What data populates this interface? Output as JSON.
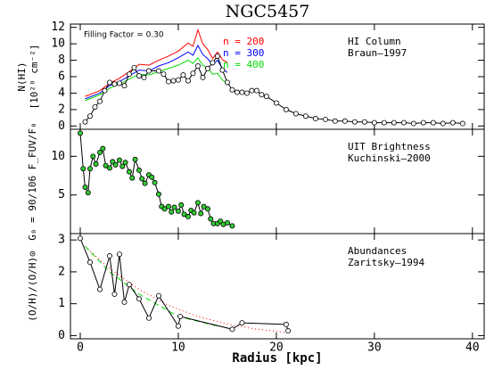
{
  "title": "NGC5457",
  "x_label": "Radius [kpc]",
  "chart_data": [
    {
      "type": "line",
      "y_label": [
        "N(HI)",
        "[10²⁰ cm⁻²]"
      ],
      "note": "Filling Factor = 0.30",
      "annotations": [
        "HI Column",
        "Braun–1997"
      ],
      "xlim": [
        -1,
        41.2
      ],
      "ylim": [
        -0.4,
        12.4
      ],
      "yticks": [
        0,
        2,
        4,
        6,
        8,
        10,
        12
      ],
      "series": [
        {
          "name": "n = 200",
          "color": "#ff0000",
          "x": [
            0.5,
            2,
            3,
            4,
            5,
            6,
            7,
            8,
            9,
            10,
            11,
            11.5,
            12,
            12.5,
            13,
            13.5,
            14,
            14.5,
            15
          ],
          "values": [
            3.6,
            4.3,
            5.2,
            5.8,
            6.6,
            7.5,
            7.4,
            8.0,
            8.5,
            9.1,
            10.1,
            9.7,
            11.7,
            10.0,
            9.3,
            8.2,
            9.0,
            8.1,
            7.7
          ]
        },
        {
          "name": "n = 300",
          "color": "#0000ff",
          "x": [
            0.5,
            2,
            3,
            4,
            5,
            6,
            7,
            8,
            9,
            10,
            11,
            11.5,
            12,
            12.5,
            13,
            13.5,
            14,
            14.5,
            15
          ],
          "values": [
            3.3,
            4.0,
            4.9,
            5.4,
            6.1,
            6.8,
            6.7,
            7.3,
            7.7,
            8.3,
            9.0,
            8.6,
            9.8,
            8.7,
            8.2,
            7.4,
            8.0,
            7.0,
            6.5
          ]
        },
        {
          "name": "n = 400",
          "color": "#00dd00",
          "x": [
            0.5,
            2,
            3,
            4,
            5,
            6,
            7,
            8,
            9,
            10,
            11,
            11.5,
            12,
            12.5,
            13,
            13.5,
            14,
            14.5,
            15
          ],
          "values": [
            3.1,
            3.8,
            4.6,
            5.1,
            5.7,
            6.3,
            6.2,
            6.6,
            7.0,
            7.4,
            8.0,
            7.6,
            8.3,
            7.4,
            7.0,
            6.3,
            6.4,
            5.6,
            5.2
          ]
        },
        {
          "color": "#000000",
          "marker_fill": "#ffffff",
          "x": [
            0.5,
            1,
            1.5,
            2,
            2.5,
            3,
            3.5,
            4,
            4.5,
            5,
            5.5,
            6,
            6.5,
            7,
            8,
            8.5,
            9,
            9.5,
            10,
            10.5,
            11,
            11.5,
            12,
            12.5,
            13,
            13.5,
            14,
            14.5,
            15,
            15.5,
            16,
            16.5,
            17,
            17.5,
            18,
            18.5,
            19,
            20,
            21,
            22,
            23,
            24,
            25,
            26,
            27,
            28,
            29,
            30,
            31,
            32,
            33,
            34,
            35,
            36,
            37,
            38,
            39
          ],
          "values": [
            0.5,
            1.2,
            2.3,
            3,
            4.3,
            5.3,
            5.1,
            5.2,
            4.9,
            6.3,
            7.1,
            6.1,
            5.9,
            6.7,
            6.7,
            6.3,
            5.4,
            5.5,
            5.6,
            6.2,
            5.5,
            6.4,
            7.3,
            5.9,
            7.0,
            7.7,
            8.5,
            6.8,
            5.3,
            4.4,
            4.1,
            4.1,
            4.0,
            4.3,
            4.3,
            3.8,
            3.6,
            2.8,
            2.0,
            1.5,
            1.2,
            0.9,
            0.8,
            0.6,
            0.6,
            0.5,
            0.5,
            0.4,
            0.4,
            0.4,
            0.4,
            0.3,
            0.4,
            0.4,
            0.3,
            0.4,
            0.3
          ]
        }
      ]
    },
    {
      "type": "line",
      "y_label": [
        "G₀ = 90/106 F_FUV/F₀"
      ],
      "annotations": [
        "UIT Brightness",
        "Kuchinski–2000"
      ],
      "xlim": [
        -1,
        41.2
      ],
      "ylim": [
        0,
        13.5
      ],
      "yticks": [
        5,
        10
      ],
      "series": [
        {
          "color": "#000000",
          "marker_fill": "#33cc33",
          "x": [
            0,
            0.3,
            0.5,
            0.8,
            1,
            1.3,
            1.6,
            2,
            2.3,
            2.6,
            3,
            3.3,
            3.6,
            4,
            4.3,
            4.6,
            5,
            5.3,
            5.6,
            6,
            6.3,
            6.6,
            7,
            7.3,
            7.6,
            8,
            8.3,
            8.6,
            9,
            9.3,
            9.6,
            10,
            10.3,
            10.6,
            11,
            11.3,
            11.6,
            12,
            12.3,
            12.6,
            13,
            13.3,
            13.6,
            14,
            14.3,
            14.6,
            15,
            15.5
          ],
          "values": [
            13,
            8.4,
            6,
            5.3,
            8.4,
            10,
            9,
            10.5,
            11,
            8.8,
            8.5,
            9.3,
            8.9,
            9.5,
            8.7,
            9.2,
            8,
            7.2,
            9.6,
            8.2,
            7.1,
            6.5,
            7.6,
            7.3,
            6.6,
            5.1,
            3.5,
            3.2,
            3.5,
            2.8,
            3.4,
            2.9,
            3.7,
            2.5,
            2.2,
            3,
            2.7,
            4,
            2.6,
            3.5,
            3.2,
            1.9,
            1.3,
            1.3,
            1.6,
            1.2,
            1.4,
            1.0
          ]
        }
      ]
    },
    {
      "type": "line",
      "y_label": [
        "(O/H)/(O/H)⊙"
      ],
      "annotations": [
        "Abundances",
        "Zaritsky–1994"
      ],
      "xlim": [
        -1,
        41.2
      ],
      "ylim": [
        -0.1,
        3.2
      ],
      "yticks": [
        0,
        1,
        2,
        3
      ],
      "xticks": [
        0,
        10,
        20,
        30,
        40
      ],
      "series": [
        {
          "color": "#ff0000",
          "dash": "1 3",
          "x": [
            0.5,
            3,
            6,
            9,
            12,
            15,
            18,
            21
          ],
          "values": [
            2.8,
            2.1,
            1.45,
            0.95,
            0.6,
            0.36,
            0.2,
            0.1
          ]
        },
        {
          "color": "#00dd00",
          "dash": "6 4",
          "x": [
            0.5,
            3,
            6,
            10,
            14
          ],
          "values": [
            2.8,
            2.0,
            1.3,
            0.6,
            0.3
          ]
        },
        {
          "color": "#000000",
          "marker_fill": "#ffffff",
          "x": [
            0,
            1,
            2,
            3,
            3.5,
            4,
            4.5,
            5,
            6,
            7,
            8,
            10,
            10.2,
            15.5,
            16.5,
            21,
            21.2
          ],
          "values": [
            3.05,
            2.3,
            1.45,
            2.5,
            1.3,
            2.55,
            1.05,
            1.6,
            1.15,
            0.55,
            1.25,
            0.3,
            0.6,
            0.2,
            0.4,
            0.35,
            0.15
          ]
        }
      ]
    }
  ]
}
